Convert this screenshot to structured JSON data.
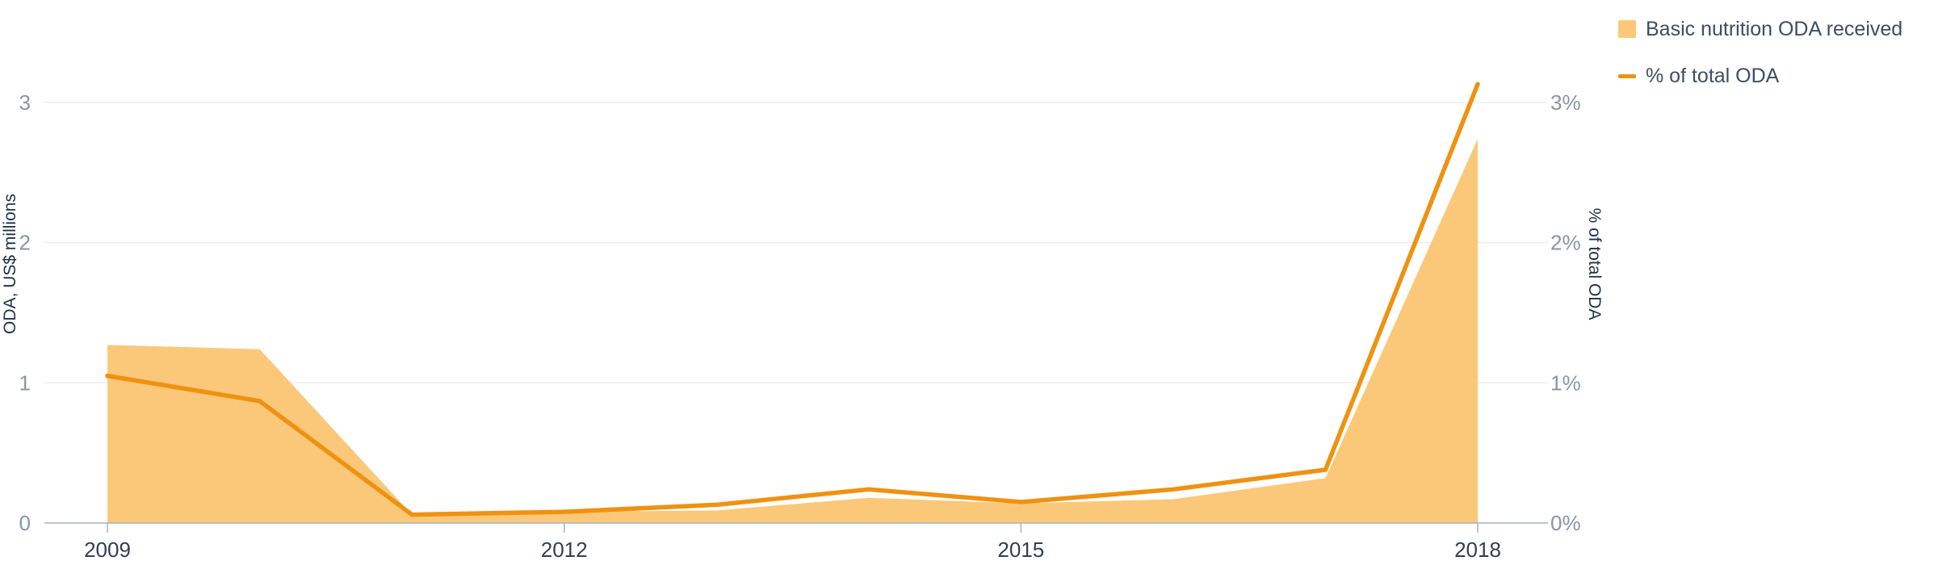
{
  "chart_data": {
    "type": "area",
    "x": [
      2009,
      2010,
      2011,
      2012,
      2013,
      2014,
      2015,
      2016,
      2017,
      2018
    ],
    "x_ticks": [
      "2009",
      "2012",
      "2015",
      "2018"
    ],
    "series": [
      {
        "name": "Basic nutrition ODA received",
        "type": "area",
        "axis": "left",
        "color": "#fbc87a",
        "values": [
          1.27,
          1.24,
          0.06,
          0.08,
          0.09,
          0.18,
          0.14,
          0.17,
          0.32,
          2.74
        ]
      },
      {
        "name": "% of total ODA",
        "type": "line",
        "axis": "right",
        "color": "#ef9211",
        "values": [
          1.05,
          0.87,
          0.06,
          0.08,
          0.13,
          0.24,
          0.15,
          0.24,
          0.38,
          3.13
        ]
      }
    ],
    "y_left": {
      "label": "ODA, US$ millions",
      "ticks": [
        "0",
        "1",
        "2",
        "3"
      ],
      "range": [
        0,
        3.5
      ]
    },
    "y_right": {
      "label": "% of total ODA",
      "ticks": [
        "0%",
        "1%",
        "2%",
        "3%"
      ],
      "range": [
        0,
        3.5
      ]
    },
    "grid": true,
    "legend_position": "top-right"
  },
  "colors": {
    "area": "#fbc87a",
    "line": "#ef9211",
    "axis_text": "#8a94a6",
    "x_text": "#333f52",
    "grid": "#e9ecf0"
  }
}
